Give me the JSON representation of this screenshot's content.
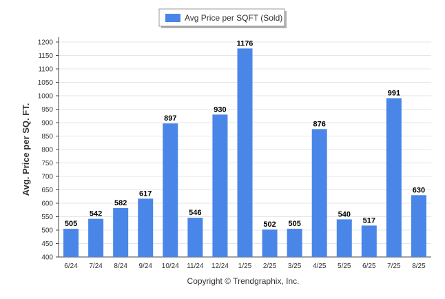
{
  "chart_data": {
    "type": "bar",
    "categories": [
      "6/24",
      "7/24",
      "8/24",
      "9/24",
      "10/24",
      "11/24",
      "12/24",
      "1/25",
      "2/25",
      "3/25",
      "4/25",
      "5/25",
      "6/25",
      "7/25",
      "8/25"
    ],
    "series": [
      {
        "name": "Avg Price per SQFT (Sold)",
        "values": [
          505,
          542,
          582,
          617,
          897,
          546,
          930,
          1176,
          502,
          505,
          876,
          540,
          517,
          991,
          630
        ]
      }
    ],
    "data_labels": [
      "505",
      "542",
      "582",
      "617",
      "897",
      "546",
      "930",
      "1176",
      "502",
      "505",
      "876",
      "540",
      "517",
      "991",
      "630"
    ],
    "ylabel": "Avg. Price per SQ. FT.",
    "xlabel": "",
    "ylim": [
      400,
      1200
    ],
    "y_ticks": [
      "400",
      "450",
      "500",
      "550",
      "600",
      "650",
      "700",
      "750",
      "800",
      "850",
      "900",
      "950",
      "1000",
      "1050",
      "1100",
      "1150",
      "1200"
    ],
    "grid": true,
    "legend": "top-center",
    "bar_color": "#4a86e8"
  },
  "footer": {
    "copyright": "Copyright © Trendgraphix, Inc."
  }
}
